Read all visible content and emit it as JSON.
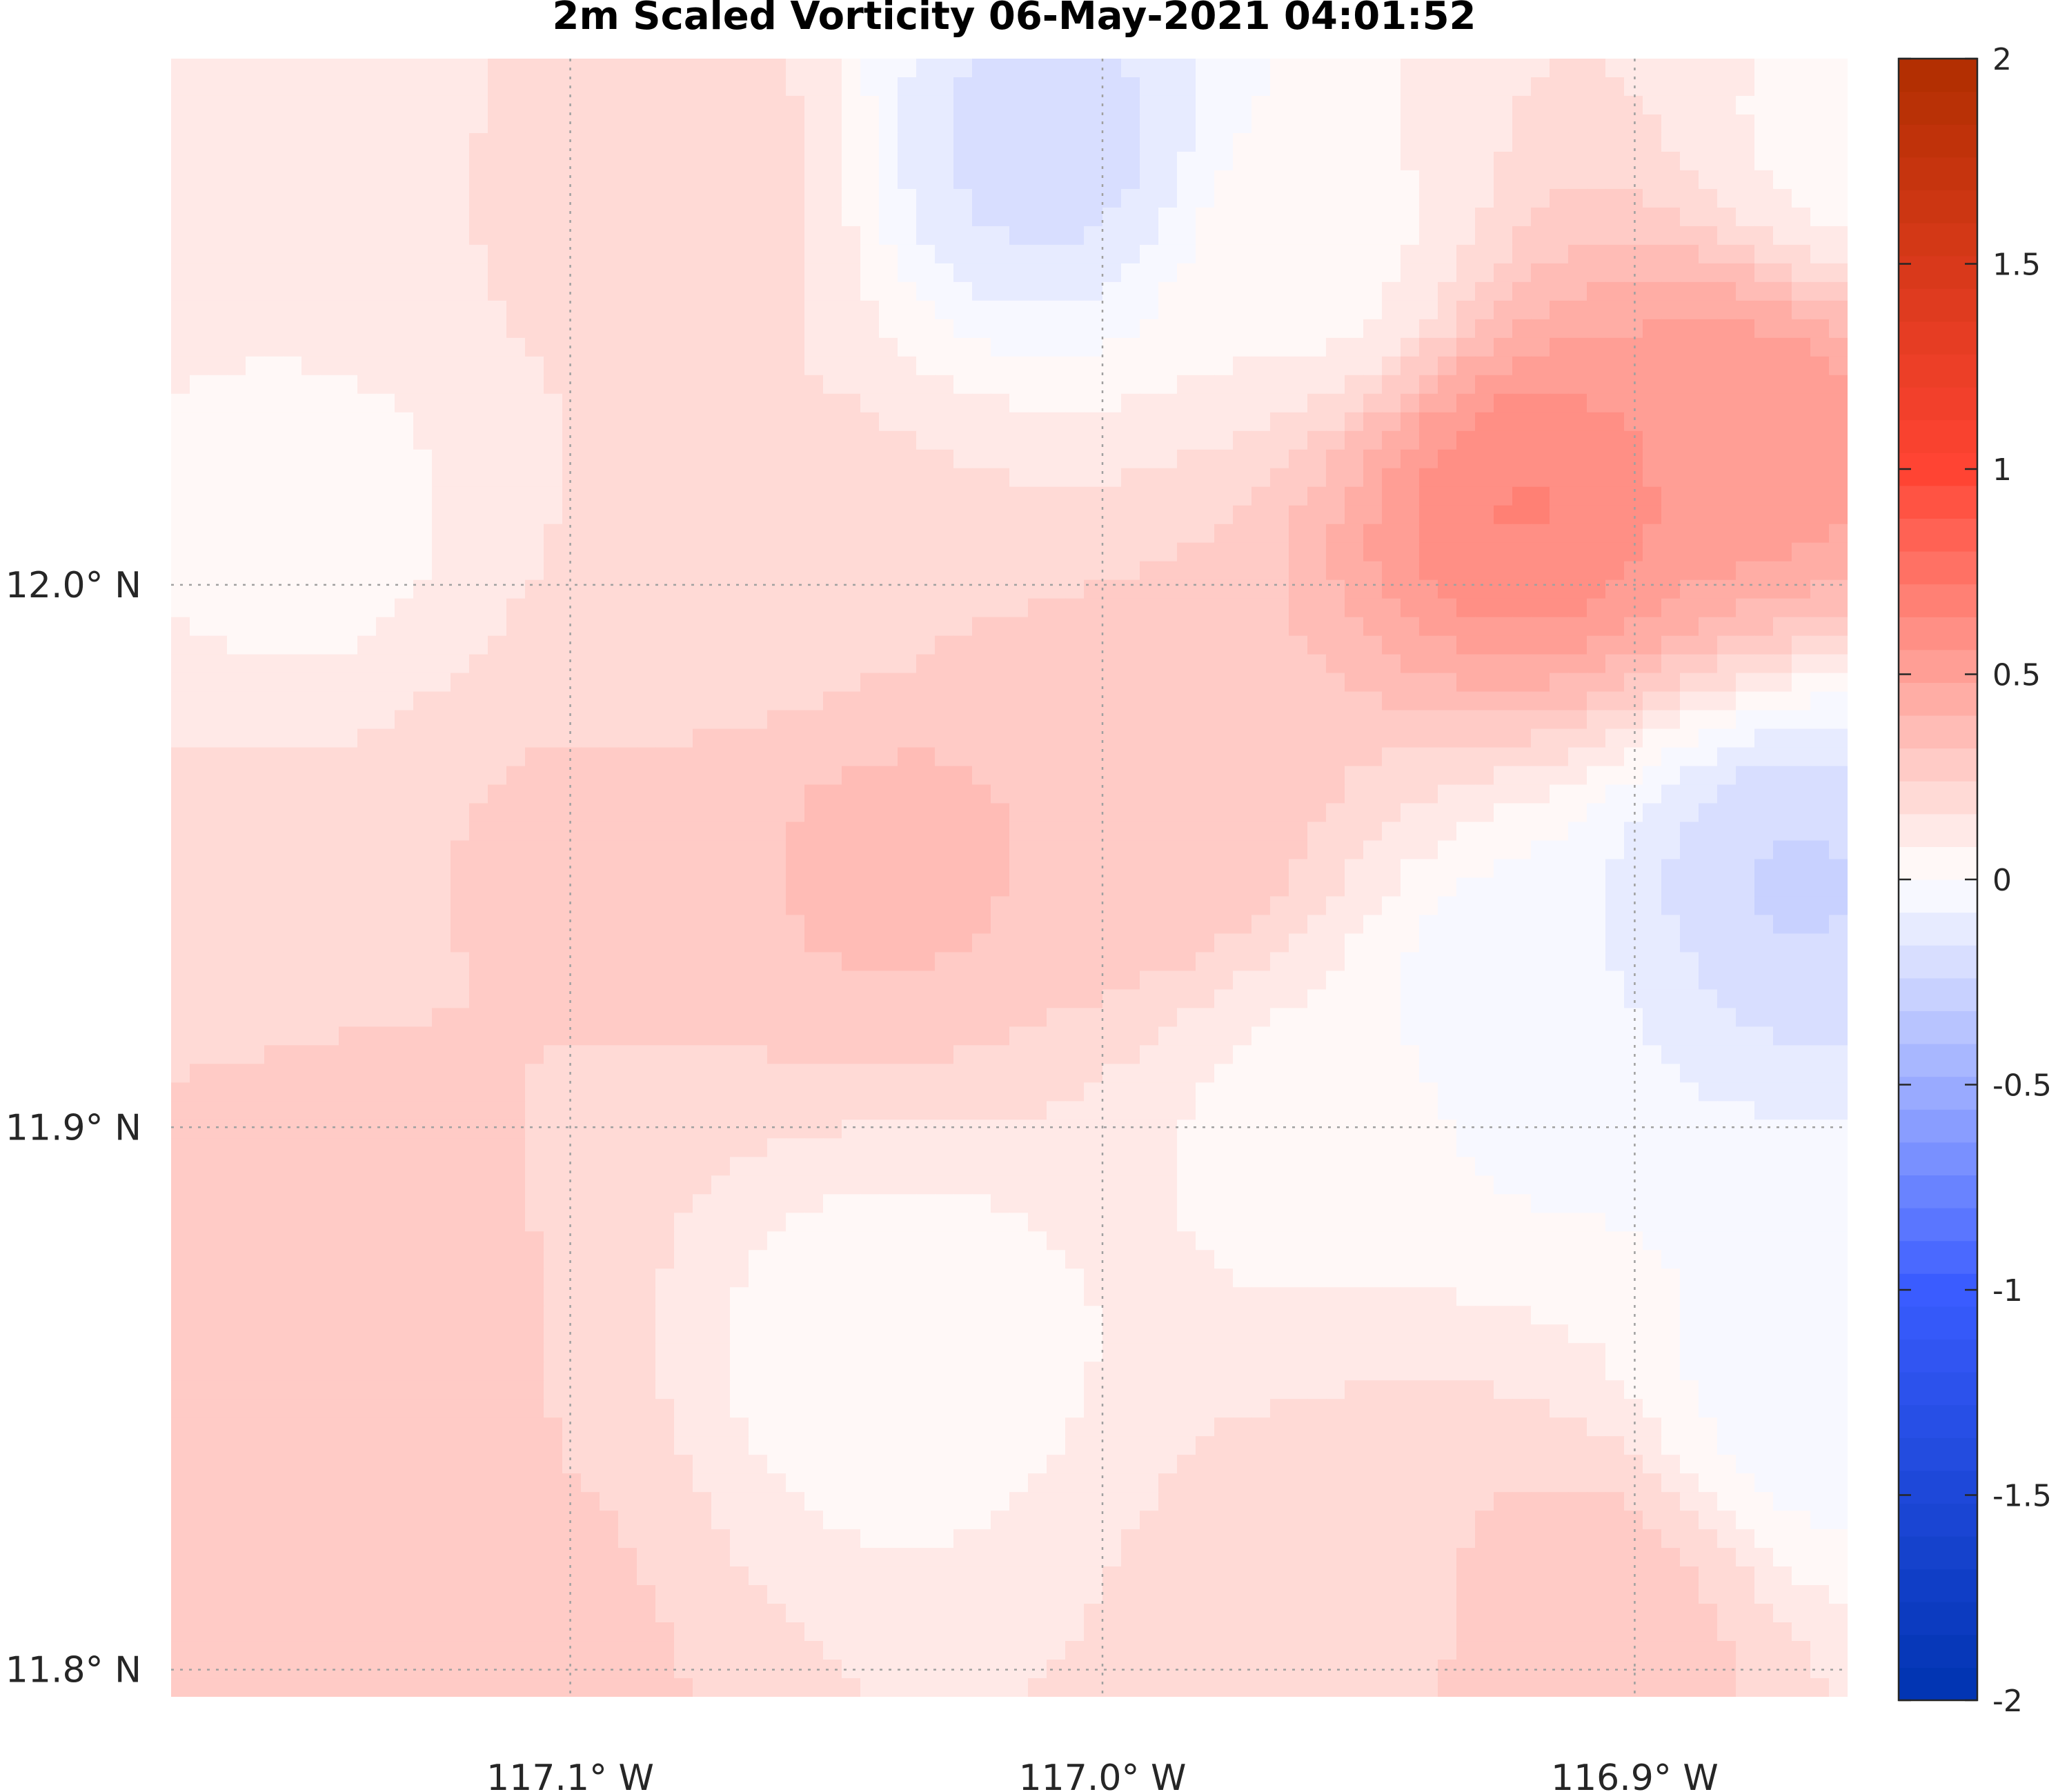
{
  "chart_data": {
    "type": "heatmap",
    "title": "2m Scaled Vorticity  06-May-2021 04:01:52",
    "x_ticks": [
      {
        "value": -117.1,
        "label": "117.1° W"
      },
      {
        "value": -117.0,
        "label": "117.0° W"
      },
      {
        "value": -116.9,
        "label": "116.9° W"
      }
    ],
    "y_ticks": [
      {
        "value": 11.8,
        "label": "11.8° N"
      },
      {
        "value": 11.9,
        "label": "11.9° N"
      },
      {
        "value": 12.0,
        "label": "12.0° N"
      }
    ],
    "xlim": [
      -117.175,
      -116.86
    ],
    "ylim": [
      11.795,
      12.097
    ],
    "grid": true,
    "colorbar": {
      "range": [
        -2,
        2
      ],
      "levels": 50,
      "ticks": [
        {
          "value": 2,
          "label": "2"
        },
        {
          "value": 1.5,
          "label": "1.5"
        },
        {
          "value": 1,
          "label": "1"
        },
        {
          "value": 0.5,
          "label": "0.5"
        },
        {
          "value": 0,
          "label": "0"
        },
        {
          "value": -0.5,
          "label": "-0.5"
        },
        {
          "value": -1,
          "label": "-1"
        },
        {
          "value": -1.5,
          "label": "-1.5"
        },
        {
          "value": -2,
          "label": "-2"
        }
      ],
      "colors": {
        "low": "#0033b0",
        "mid_low": "#3a5cff",
        "zero": "#ffffff",
        "mid_high": "#ff4433",
        "high": "#b02e00"
      }
    },
    "features": [
      {
        "lon": -117.16,
        "lat": 12.085,
        "value": 0.1
      },
      {
        "lon": -117.08,
        "lat": 12.075,
        "value": 0.22
      },
      {
        "lon": -117.01,
        "lat": 12.08,
        "value": -0.2
      },
      {
        "lon": -116.96,
        "lat": 12.06,
        "value": 0.05
      },
      {
        "lon": -116.92,
        "lat": 12.015,
        "value": 0.65
      },
      {
        "lon": -116.88,
        "lat": 12.03,
        "value": 0.55
      },
      {
        "lon": -116.86,
        "lat": 12.08,
        "value": 0.05
      },
      {
        "lon": -117.15,
        "lat": 12.01,
        "value": 0.05
      },
      {
        "lon": -117.1,
        "lat": 11.95,
        "value": 0.25
      },
      {
        "lon": -117.04,
        "lat": 11.95,
        "value": 0.35
      },
      {
        "lon": -116.99,
        "lat": 11.955,
        "value": 0.32
      },
      {
        "lon": -116.87,
        "lat": 11.945,
        "value": -0.25
      },
      {
        "lon": -116.92,
        "lat": 11.92,
        "value": -0.08
      },
      {
        "lon": -117.16,
        "lat": 11.89,
        "value": 0.3
      },
      {
        "lon": -117.13,
        "lat": 11.86,
        "value": 0.25
      },
      {
        "lon": -117.04,
        "lat": 11.86,
        "value": 0.02
      },
      {
        "lon": -116.96,
        "lat": 11.9,
        "value": 0.05
      },
      {
        "lon": -116.95,
        "lat": 11.815,
        "value": 0.22
      },
      {
        "lon": -116.91,
        "lat": 11.81,
        "value": 0.3
      },
      {
        "lon": -116.865,
        "lat": 11.85,
        "value": -0.05
      },
      {
        "lon": -117.17,
        "lat": 11.93,
        "value": 0.2
      },
      {
        "lon": -117.06,
        "lat": 12.0,
        "value": 0.2
      },
      {
        "lon": -117.12,
        "lat": 11.805,
        "value": 0.28
      }
    ],
    "base_value": 0.15
  }
}
